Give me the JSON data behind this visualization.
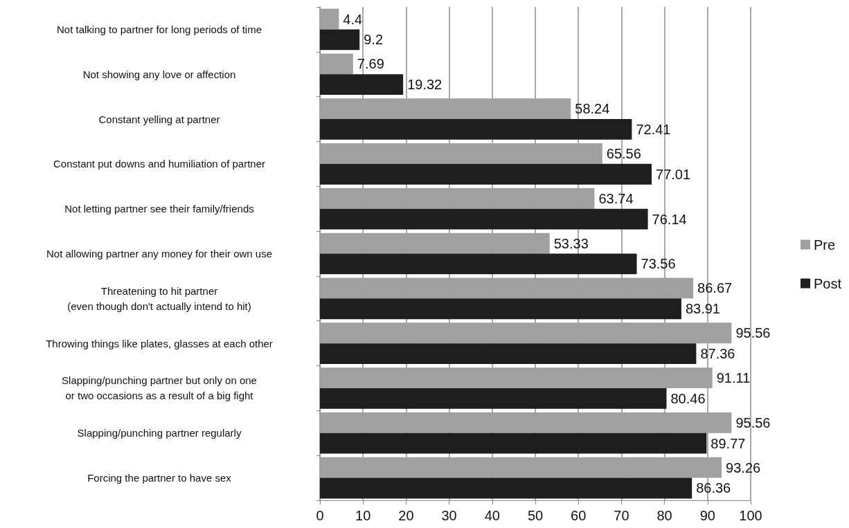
{
  "chart_data": {
    "type": "bar",
    "orientation": "horizontal",
    "categories": [
      "Not talking to partner for long periods of time",
      "Not showing any love or affection",
      "Constant yelling at partner",
      "Constant put downs and humiliation of partner",
      "Not letting partner see their family/friends",
      "Not allowing partner any money for their own use",
      "Threatening to hit partner\n(even though don't actually intend to hit)",
      "Throwing things like plates, glasses at each other",
      "Slapping/punching partner but only on one\nor two occasions as a result of a big fight",
      "Slapping/punching partner regularly",
      "Forcing the partner to have sex"
    ],
    "series": [
      {
        "name": "Pre",
        "color": "#a0a0a0",
        "values": [
          4.4,
          7.69,
          58.24,
          65.56,
          63.74,
          53.33,
          86.67,
          95.56,
          91.11,
          95.56,
          93.26
        ]
      },
      {
        "name": "Post",
        "color": "#1e1e1e",
        "values": [
          9.2,
          19.32,
          72.41,
          77.01,
          76.14,
          73.56,
          83.91,
          87.36,
          80.46,
          89.77,
          86.36
        ]
      }
    ],
    "xlim": [
      0,
      100
    ],
    "xticks": [
      0,
      10,
      20,
      30,
      40,
      50,
      60,
      70,
      80,
      90,
      100
    ],
    "grid": "x",
    "legend": "right",
    "data_labels": true
  }
}
